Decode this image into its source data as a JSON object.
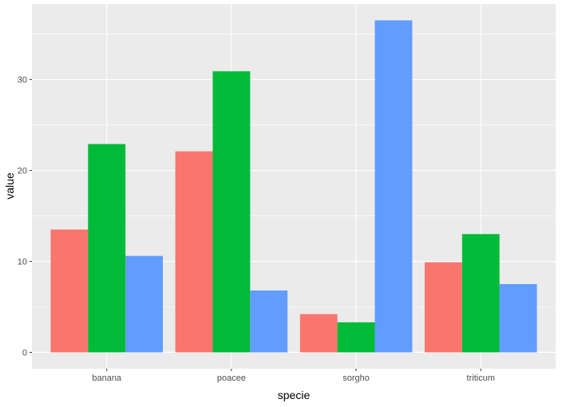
{
  "chart_data": {
    "type": "bar",
    "categories": [
      "banana",
      "poacee",
      "sorgho",
      "triticum"
    ],
    "series": [
      {
        "values": [
          13.5,
          22.1,
          4.2,
          9.9
        ]
      },
      {
        "values": [
          22.9,
          30.9,
          3.3,
          13.0
        ]
      },
      {
        "values": [
          10.6,
          6.8,
          36.5,
          7.5
        ]
      }
    ],
    "xlabel": "specie",
    "ylabel": "value",
    "ylim": [
      -1.8,
      38.3
    ],
    "yticks": [
      0,
      10,
      20,
      30
    ],
    "grid": true,
    "colors": [
      "#F8766D",
      "#00BA38",
      "#619CFF"
    ],
    "panel_background": "#EBEBEB",
    "gridline_color": "#FFFFFF"
  }
}
